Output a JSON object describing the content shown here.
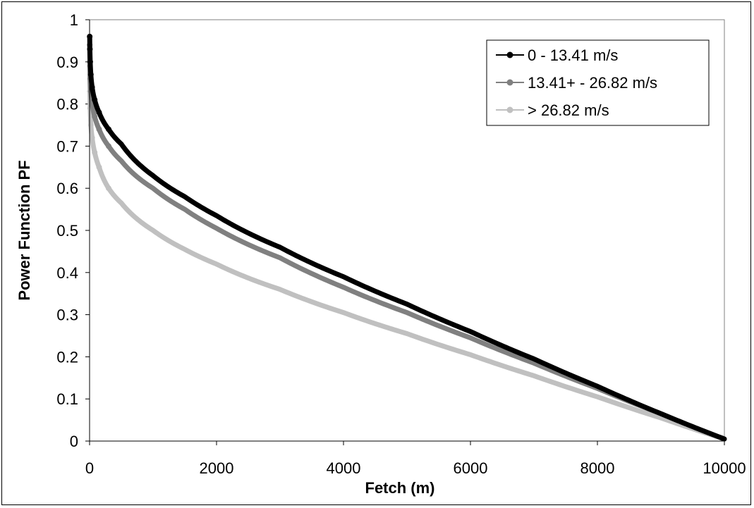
{
  "chart_data": {
    "type": "scatter",
    "title": "",
    "xlabel": "Fetch (m)",
    "ylabel": "Power Function PF",
    "xlim": [
      0,
      10000
    ],
    "ylim": [
      0,
      1
    ],
    "x_ticks": [
      "0",
      "2000",
      "4000",
      "6000",
      "8000",
      "10000"
    ],
    "y_ticks": [
      "0",
      "0.1",
      "0.2",
      "0.3",
      "0.4",
      "0.5",
      "0.6",
      "0.7",
      "0.8",
      "0.9",
      "1"
    ],
    "grid": false,
    "legend_position": "top-right",
    "series": [
      {
        "name": "0 - 13.41 m/s",
        "color": "#000000",
        "points": [
          [
            2,
            0.96
          ],
          [
            5,
            0.93
          ],
          [
            10,
            0.9
          ],
          [
            20,
            0.87
          ],
          [
            40,
            0.84
          ],
          [
            80,
            0.81
          ],
          [
            150,
            0.78
          ],
          [
            300,
            0.74
          ],
          [
            500,
            0.705
          ],
          [
            1000,
            0.63
          ],
          [
            1500,
            0.58
          ],
          [
            2000,
            0.535
          ],
          [
            3000,
            0.46
          ],
          [
            4000,
            0.39
          ],
          [
            5000,
            0.325
          ],
          [
            6000,
            0.26
          ],
          [
            7000,
            0.195
          ],
          [
            8000,
            0.13
          ],
          [
            9000,
            0.065
          ],
          [
            10000,
            0.005
          ]
        ]
      },
      {
        "name": "13.41+ - 26.82 m/s",
        "color": "#808080",
        "points": [
          [
            2,
            0.94
          ],
          [
            5,
            0.9
          ],
          [
            10,
            0.86
          ],
          [
            20,
            0.83
          ],
          [
            40,
            0.8
          ],
          [
            80,
            0.77
          ],
          [
            150,
            0.74
          ],
          [
            300,
            0.7
          ],
          [
            500,
            0.665
          ],
          [
            1000,
            0.6
          ],
          [
            1500,
            0.55
          ],
          [
            2000,
            0.505
          ],
          [
            3000,
            0.435
          ],
          [
            4000,
            0.365
          ],
          [
            5000,
            0.305
          ],
          [
            6000,
            0.245
          ],
          [
            7000,
            0.185
          ],
          [
            8000,
            0.125
          ],
          [
            9000,
            0.065
          ],
          [
            10000,
            0.005
          ]
        ]
      },
      {
        "name": "> 26.82 m/s",
        "color": "#c0c0c0",
        "points": [
          [
            2,
            0.89
          ],
          [
            5,
            0.83
          ],
          [
            10,
            0.79
          ],
          [
            20,
            0.75
          ],
          [
            40,
            0.72
          ],
          [
            80,
            0.685
          ],
          [
            150,
            0.65
          ],
          [
            300,
            0.6
          ],
          [
            500,
            0.565
          ],
          [
            1000,
            0.5
          ],
          [
            1500,
            0.455
          ],
          [
            2000,
            0.42
          ],
          [
            3000,
            0.36
          ],
          [
            4000,
            0.305
          ],
          [
            5000,
            0.255
          ],
          [
            6000,
            0.205
          ],
          [
            7000,
            0.155
          ],
          [
            8000,
            0.105
          ],
          [
            9000,
            0.055
          ],
          [
            10000,
            0.005
          ]
        ]
      }
    ]
  }
}
